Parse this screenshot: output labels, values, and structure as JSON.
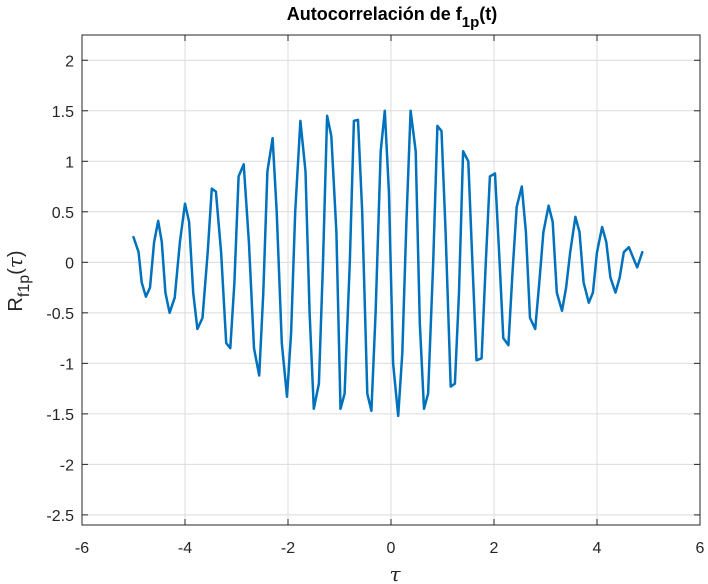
{
  "chart_data": {
    "type": "line",
    "title_main": "Autocorrelación de f",
    "title_sub": "1p",
    "title_end": "(t)",
    "xlabel": "τ",
    "ylabel_main": "R",
    "ylabel_sub": "f1p",
    "ylabel_open": "(",
    "ylabel_var": "τ",
    "ylabel_close": ")",
    "xlim": [
      -6,
      6
    ],
    "ylim": [
      -2.6,
      2.25
    ],
    "xticks": [
      -6,
      -4,
      -2,
      0,
      2,
      4,
      6
    ],
    "xtick_labels": [
      "-6",
      "-4",
      "-2",
      "0",
      "2",
      "4",
      "6"
    ],
    "yticks": [
      2,
      1.5,
      1,
      0.5,
      0,
      -0.5,
      -1,
      -1.5,
      -2,
      -2.5
    ],
    "ytick_labels": [
      "2",
      "1.5",
      "1",
      "0.5",
      "0",
      "-0.5",
      "-1",
      "-1.5",
      "-2",
      "-2.5"
    ],
    "grid": true,
    "line_color": "#0072BD",
    "series": [
      {
        "x": [
          -5.0,
          -4.9,
          -4.84,
          -4.76,
          -4.68,
          -4.6,
          -4.52,
          -4.45,
          -4.38,
          -4.3,
          -4.2,
          -4.1,
          -4.0,
          -3.92,
          -3.84,
          -3.76,
          -3.66,
          -3.56,
          -3.48,
          -3.4,
          -3.3,
          -3.2,
          -3.12,
          -3.04,
          -2.96,
          -2.86,
          -2.76,
          -2.66,
          -2.56,
          -2.48,
          -2.4,
          -2.3,
          -2.22,
          -2.12,
          -2.02,
          -1.94,
          -1.86,
          -1.76,
          -1.66,
          -1.58,
          -1.5,
          -1.4,
          -1.32,
          -1.24,
          -1.16,
          -1.06,
          -0.98,
          -0.9,
          -0.8,
          -0.72,
          -0.64,
          -0.56,
          -0.46,
          -0.38,
          -0.3,
          -0.2,
          -0.12,
          -0.04,
          0.04,
          0.14,
          0.22,
          0.3,
          0.38,
          0.48,
          0.56,
          0.64,
          0.72,
          0.82,
          0.9,
          0.98,
          1.06,
          1.16,
          1.24,
          1.32,
          1.4,
          1.5,
          1.58,
          1.66,
          1.76,
          1.84,
          1.92,
          2.02,
          2.1,
          2.18,
          2.28,
          2.36,
          2.44,
          2.54,
          2.62,
          2.7,
          2.8,
          2.88,
          2.96,
          3.06,
          3.14,
          3.22,
          3.32,
          3.4,
          3.48,
          3.58,
          3.66,
          3.74,
          3.84,
          3.92,
          4.0,
          4.1,
          4.18,
          4.26,
          4.36,
          4.44,
          4.52,
          4.62,
          4.7,
          4.78,
          4.88
        ],
        "y": [
          0.25,
          0.1,
          -0.2,
          -0.34,
          -0.25,
          0.2,
          0.41,
          0.2,
          -0.3,
          -0.5,
          -0.35,
          0.2,
          0.58,
          0.4,
          -0.3,
          -0.66,
          -0.55,
          0.1,
          0.73,
          0.7,
          0.1,
          -0.8,
          -0.85,
          -0.2,
          0.85,
          0.97,
          0.2,
          -0.85,
          -1.12,
          -0.3,
          0.9,
          1.23,
          0.5,
          -0.8,
          -1.33,
          -0.7,
          0.5,
          1.4,
          0.9,
          -0.5,
          -1.45,
          -1.2,
          0.0,
          1.45,
          1.25,
          0.3,
          -1.45,
          -1.3,
          0.0,
          1.4,
          1.41,
          0.5,
          -1.3,
          -1.47,
          -0.5,
          1.1,
          1.5,
          0.7,
          -1.0,
          -1.52,
          -0.9,
          0.4,
          1.5,
          1.1,
          -0.6,
          -1.45,
          -1.3,
          0.0,
          1.35,
          1.3,
          0.3,
          -1.23,
          -1.2,
          -0.3,
          1.1,
          1.0,
          0.0,
          -0.97,
          -0.95,
          0.0,
          0.85,
          0.88,
          0.1,
          -0.75,
          -0.82,
          -0.1,
          0.55,
          0.75,
          0.3,
          -0.55,
          -0.66,
          -0.2,
          0.3,
          0.56,
          0.4,
          -0.3,
          -0.48,
          -0.25,
          0.1,
          0.45,
          0.3,
          -0.2,
          -0.4,
          -0.3,
          0.1,
          0.35,
          0.2,
          -0.15,
          -0.3,
          -0.15,
          0.1,
          0.15,
          0.05,
          -0.05,
          0.1
        ]
      }
    ]
  }
}
